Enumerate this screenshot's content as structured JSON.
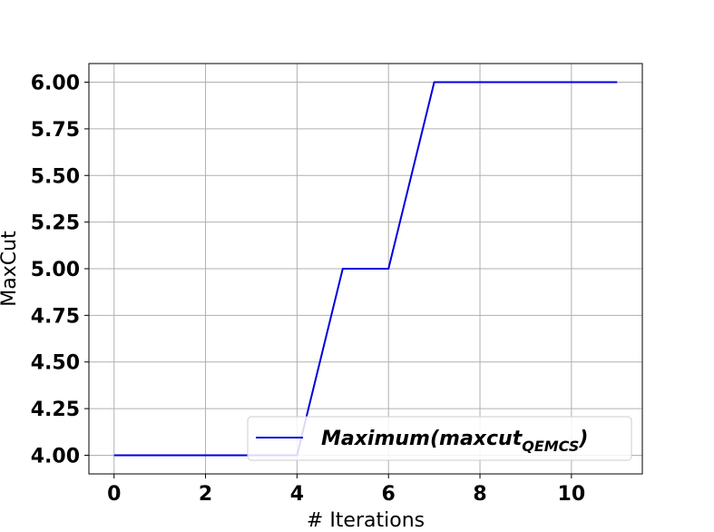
{
  "chart_data": {
    "type": "line",
    "xlabel": "# Iterations",
    "ylabel": "MaxCut",
    "xlim": [
      -0.55,
      11.55
    ],
    "ylim": [
      3.9,
      6.1
    ],
    "xticks": [
      0,
      2,
      4,
      6,
      8,
      10
    ],
    "xtick_labels": [
      "0",
      "2",
      "4",
      "6",
      "8",
      "10"
    ],
    "yticks": [
      4.0,
      4.25,
      4.5,
      4.75,
      5.0,
      5.25,
      5.5,
      5.75,
      6.0
    ],
    "ytick_labels": [
      "4.00",
      "4.25",
      "4.50",
      "4.75",
      "5.00",
      "5.25",
      "5.50",
      "5.75",
      "6.00"
    ],
    "grid": true,
    "legend_position": "lower-right",
    "series": [
      {
        "name": "Maximum(maxcut",
        "name_subscript": "QEMCS",
        "name_suffix": ")",
        "color": "#0000dd",
        "x": [
          0,
          1,
          2,
          3,
          4,
          5,
          6,
          7,
          8,
          9,
          10,
          11
        ],
        "y": [
          4.0,
          4.0,
          4.0,
          4.0,
          4.0,
          5.0,
          5.0,
          6.0,
          6.0,
          6.0,
          6.0,
          6.0
        ]
      }
    ]
  }
}
